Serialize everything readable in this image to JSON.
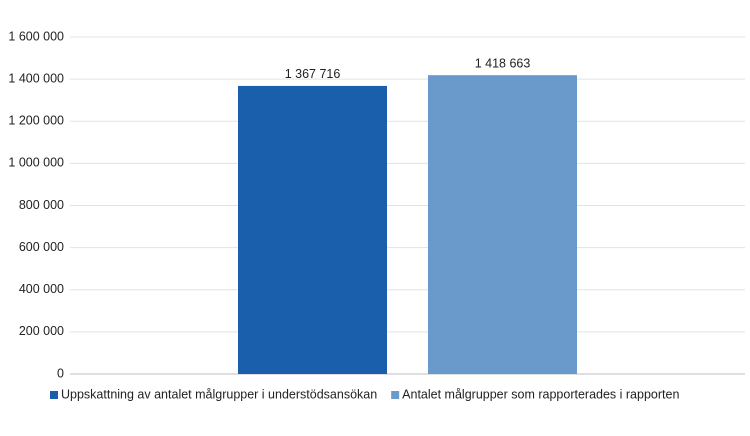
{
  "chart_data": {
    "type": "bar",
    "categories": [
      null
    ],
    "series": [
      {
        "name": "Uppskattning av antalet målgrupper i understödsansökan",
        "color": "#1a5fac",
        "values": [
          1367716
        ],
        "value_labels": [
          "1 367 716"
        ]
      },
      {
        "name": "Antalet målgrupper som rapporterades i rapporten",
        "color": "#6a99cb",
        "values": [
          1418663
        ],
        "value_labels": [
          "1 418 663"
        ]
      }
    ],
    "ylim": [
      0,
      1600000
    ],
    "yticks": [
      0,
      {
        "value": 200000,
        "label": "200 000"
      },
      {
        "value": 400000,
        "label": "400 000"
      },
      {
        "value": 600000,
        "label": "600 000"
      },
      {
        "value": 800000,
        "label": "800 000"
      },
      {
        "value": 1000000,
        "label": "1 000 000"
      },
      {
        "value": 1200000,
        "label": "1 200 000"
      },
      {
        "value": 1400000,
        "label": "1 400 000"
      },
      {
        "value": 1600000,
        "label": "1 600 000"
      }
    ],
    "grid": true,
    "legend": "bottom"
  }
}
